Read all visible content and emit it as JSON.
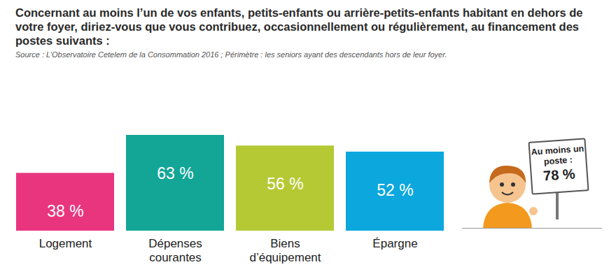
{
  "chart_data": {
    "type": "bar",
    "title": "Concernant au moins l’un de vos enfants, petits-enfants ou arrière-petits-enfants habitant en dehors de votre foyer, diriez-vous que vous contribuez, occasionnellement ou régulièrement, au financement des postes suivants :",
    "subtitle": "Source : L’Observatoire Cetelem de la Consommation 2016 ; Périmètre : les seniors ayant des descendants hors de leur foyer.",
    "categories": [
      "Logement",
      "Dépenses courantes",
      "Biens d’équipement",
      "Épargne"
    ],
    "values": [
      38,
      63,
      56,
      52
    ],
    "value_labels": [
      "38 %",
      "63 %",
      "56 %",
      "52 %"
    ],
    "colors": [
      "#e8357e",
      "#13a697",
      "#b5c934",
      "#0ba7dd"
    ],
    "ylim": [
      0,
      63
    ],
    "data_labels": true,
    "tick_labels": "x",
    "annotations": [
      {
        "text": "Au moins un poste :",
        "value": 78,
        "label": "78 %"
      }
    ]
  }
}
